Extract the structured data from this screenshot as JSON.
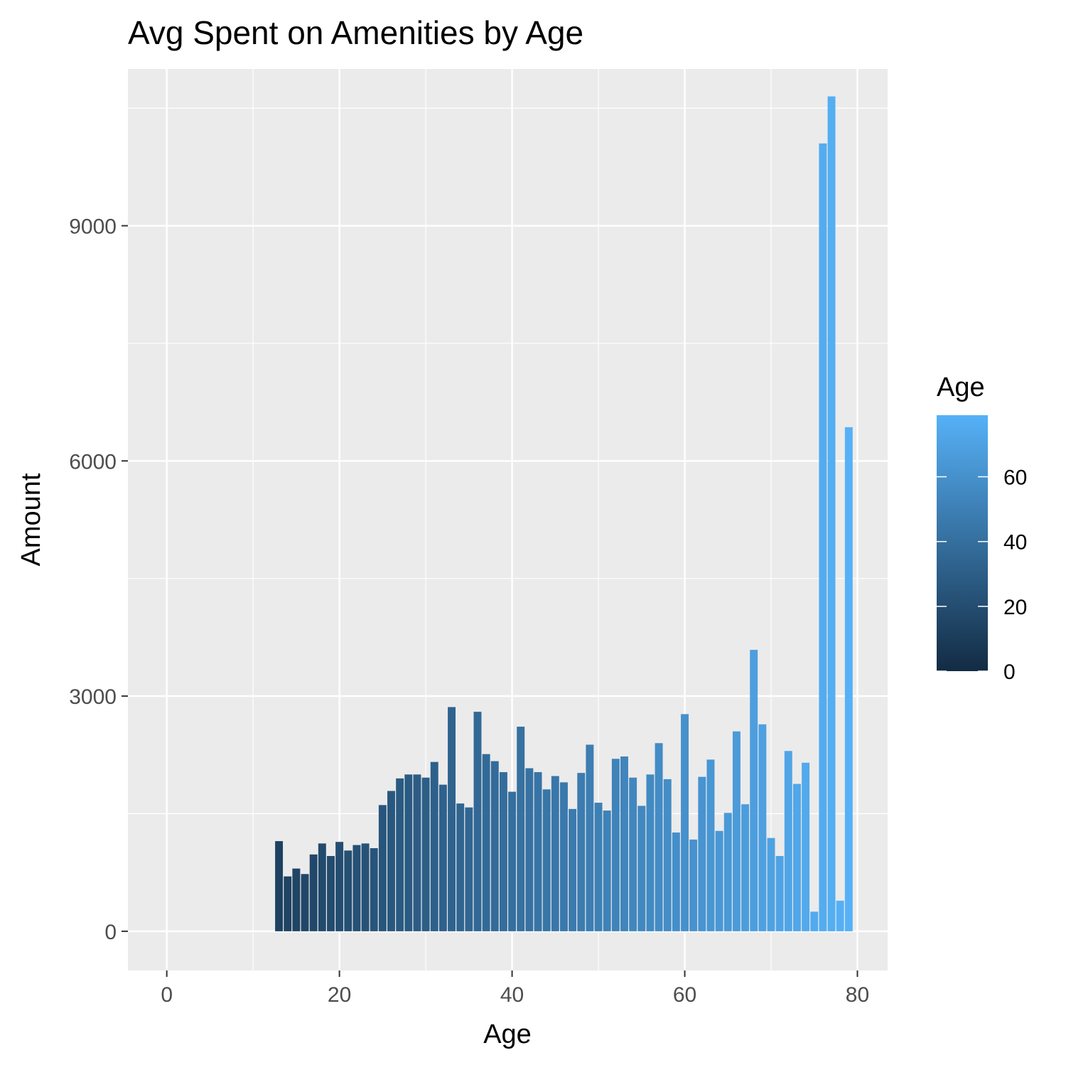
{
  "chart_data": {
    "type": "bar",
    "title": "Avg Spent on Amenities by Age",
    "xlabel": "Age",
    "ylabel": "Amount",
    "xlim": [
      -4.5,
      83.5
    ],
    "ylim": [
      -500,
      11000
    ],
    "x_ticks": [
      0,
      20,
      40,
      60,
      80
    ],
    "x_tick_labels": [
      "0",
      "20",
      "40",
      "60",
      "80"
    ],
    "y_ticks": [
      0,
      3000,
      6000,
      9000
    ],
    "y_tick_labels": [
      "0",
      "3000",
      "6000",
      "9000"
    ],
    "grid": true,
    "legend": {
      "title": "Age",
      "position": "right",
      "type": "colorbar",
      "ticks": [
        0,
        20,
        40,
        60
      ],
      "tick_labels": [
        "0",
        "20",
        "40",
        "60"
      ],
      "range": [
        0,
        79
      ],
      "low_color": "#132B43",
      "high_color": "#56B1F7"
    },
    "x": [
      13,
      14,
      15,
      16,
      17,
      18,
      19,
      20,
      21,
      22,
      23,
      24,
      25,
      26,
      27,
      28,
      29,
      30,
      31,
      32,
      33,
      34,
      35,
      36,
      37,
      38,
      39,
      40,
      41,
      42,
      43,
      44,
      45,
      46,
      47,
      48,
      49,
      50,
      51,
      52,
      53,
      54,
      55,
      56,
      57,
      58,
      59,
      60,
      61,
      62,
      63,
      64,
      65,
      66,
      67,
      68,
      69,
      70,
      71,
      72,
      73,
      74,
      75,
      76,
      77,
      78,
      79
    ],
    "values": [
      1150,
      700,
      800,
      730,
      980,
      1120,
      960,
      1140,
      1030,
      1100,
      1120,
      1060,
      1610,
      1790,
      1950,
      2000,
      2000,
      1960,
      2160,
      1870,
      2860,
      1630,
      1580,
      2800,
      2260,
      2170,
      2030,
      1780,
      2610,
      2080,
      2030,
      1810,
      1980,
      1900,
      1560,
      2020,
      2380,
      1640,
      1540,
      2200,
      2230,
      1960,
      1600,
      2000,
      2400,
      1940,
      1260,
      2770,
      1170,
      1970,
      2190,
      1280,
      1510,
      2550,
      1620,
      3590,
      2640,
      1190,
      960,
      2300,
      1880,
      2150,
      250,
      10050,
      10650,
      390,
      6430
    ]
  },
  "colors": {
    "panel_bg": "#EBEBEB",
    "grid": "#FFFFFF",
    "axis_text": "#4D4D4D",
    "tick_mark": "#333333"
  }
}
